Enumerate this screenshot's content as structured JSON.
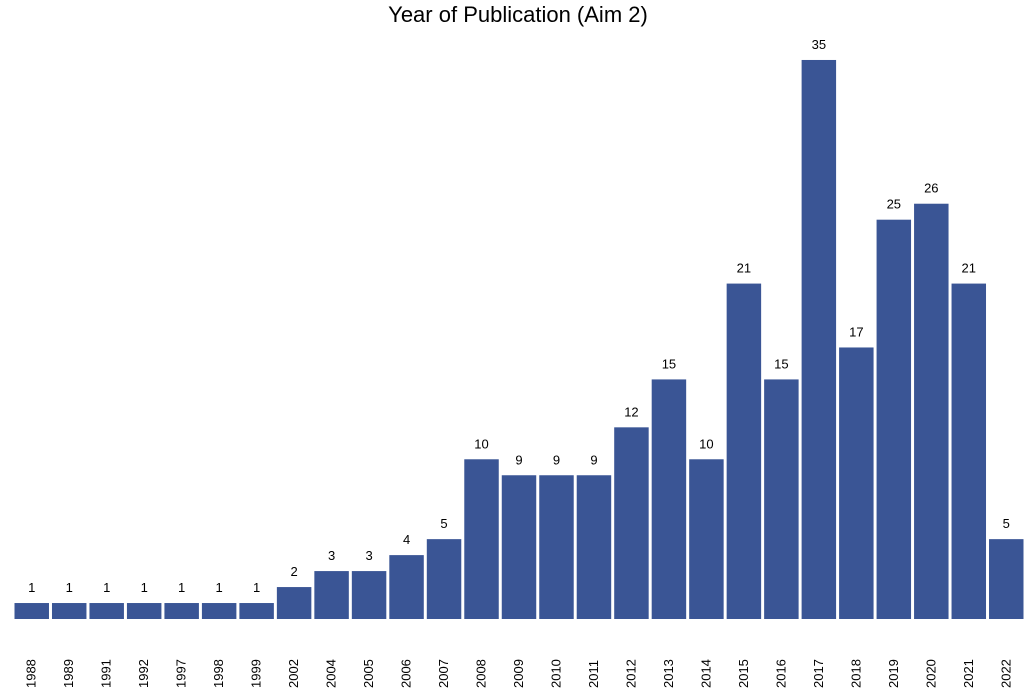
{
  "chart_data": {
    "type": "bar",
    "title": "Year of Publication (Aim 2)",
    "xlabel": "",
    "ylabel": "",
    "categories": [
      "1988",
      "1989",
      "1991",
      "1992",
      "1997",
      "1998",
      "1999",
      "2002",
      "2004",
      "2005",
      "2006",
      "2007",
      "2008",
      "2009",
      "2010",
      "2011",
      "2012",
      "2013",
      "2014",
      "2015",
      "2016",
      "2017",
      "2018",
      "2019",
      "2020",
      "2021",
      "2022"
    ],
    "values": [
      1,
      1,
      1,
      1,
      1,
      1,
      1,
      2,
      3,
      3,
      4,
      5,
      10,
      9,
      9,
      9,
      12,
      15,
      10,
      21,
      15,
      35,
      17,
      25,
      26,
      21,
      5
    ],
    "ylim": [
      0,
      36
    ],
    "grid": false,
    "bar_color": "#3a5595",
    "data_labels": true
  }
}
